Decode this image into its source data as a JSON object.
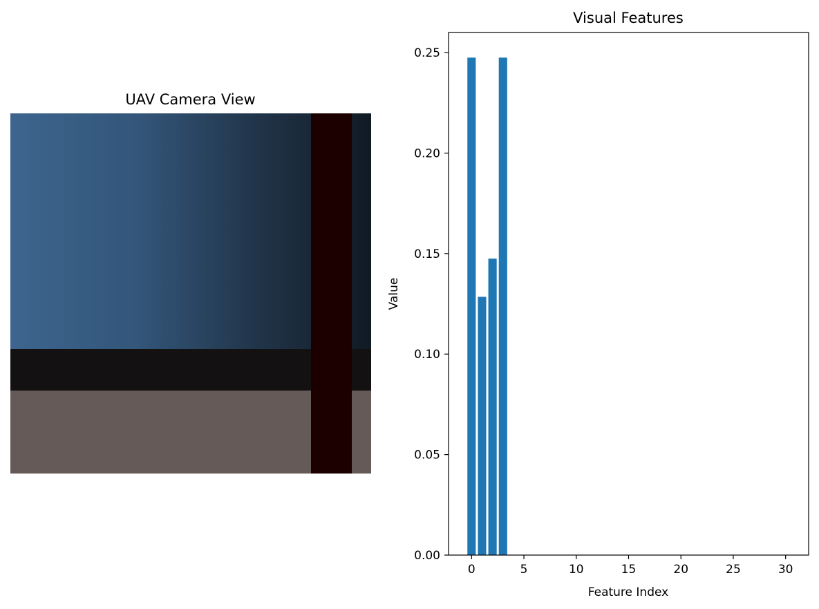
{
  "camera_panel": {
    "title": "UAV Camera View"
  },
  "chart_data": {
    "type": "bar",
    "title": "Visual Features",
    "xlabel": "Feature Index",
    "ylabel": "Value",
    "x": [
      0,
      1,
      2,
      3,
      4,
      5,
      6,
      7,
      8,
      9,
      10,
      11,
      12,
      13,
      14,
      15,
      16,
      17,
      18,
      19,
      20,
      21,
      22,
      23,
      24,
      25,
      26,
      27,
      28,
      29,
      30,
      31
    ],
    "values": [
      0.2475,
      0.1285,
      0.1475,
      0.2475,
      0,
      0,
      0,
      0,
      0,
      0,
      0,
      0,
      0,
      0,
      0,
      0,
      0,
      0,
      0,
      0,
      0,
      0,
      0,
      0,
      0,
      0,
      0,
      0,
      0,
      0,
      0,
      0
    ],
    "xlim": [
      -2.2,
      32.2
    ],
    "ylim": [
      0,
      0.26
    ],
    "xticks": [
      0,
      5,
      10,
      15,
      20,
      25,
      30
    ],
    "xtick_labels": [
      "0",
      "5",
      "10",
      "15",
      "20",
      "25",
      "30"
    ],
    "yticks": [
      0,
      0.05,
      0.1,
      0.15,
      0.2,
      0.25
    ],
    "ytick_labels": [
      "0.00",
      "0.05",
      "0.10",
      "0.15",
      "0.20",
      "0.25"
    ],
    "grid": false,
    "bar_color": "#1f77b4"
  }
}
